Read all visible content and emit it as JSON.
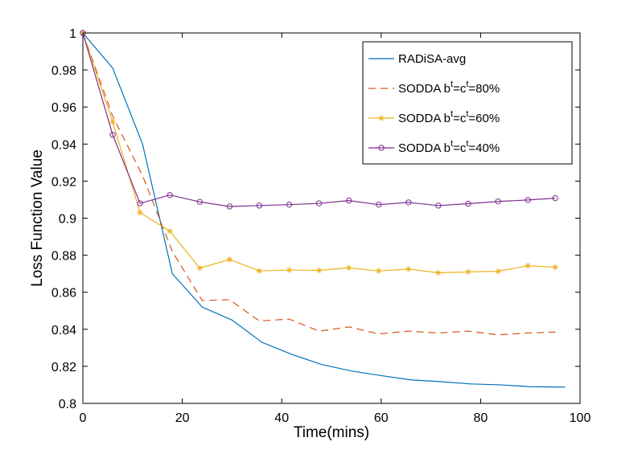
{
  "chart_data": {
    "type": "line",
    "title": "",
    "xlabel": "Time(mins)",
    "ylabel": "Loss Function Value",
    "xlim": [
      0,
      100
    ],
    "ylim": [
      0.8,
      1.0
    ],
    "xticks": [
      0,
      20,
      40,
      60,
      80,
      100
    ],
    "yticks": [
      0.8,
      0.82,
      0.84,
      0.86,
      0.88,
      0.9,
      0.92,
      0.94,
      0.96,
      0.98,
      1.0
    ],
    "xtick_labels": [
      "0",
      "20",
      "40",
      "60",
      "80",
      "100"
    ],
    "ytick_labels": [
      "0.8",
      "0.82",
      "0.84",
      "0.86",
      "0.88",
      "0.9",
      "0.92",
      "0.94",
      "0.96",
      "0.98",
      "1"
    ],
    "grid": false,
    "legend_position": "top-right",
    "series": [
      {
        "name": "RADiSA-avg",
        "legend": {
          "prefix": "RADiSA-avg",
          "b_sup": "",
          "c_sup": "",
          "suffix": ""
        },
        "color": "#0072bd",
        "style": "solid",
        "marker": "none",
        "x": [
          0,
          6,
          12,
          18,
          24,
          30,
          36,
          42,
          48,
          54,
          60,
          66,
          72,
          78,
          84,
          90,
          97
        ],
        "y": [
          1.0,
          0.981,
          0.94,
          0.87,
          0.852,
          0.845,
          0.833,
          0.8265,
          0.821,
          0.8175,
          0.815,
          0.8127,
          0.8117,
          0.8105,
          0.81,
          0.809,
          0.8088
        ]
      },
      {
        "name": "SODDA b^t=c^t=80%",
        "legend": {
          "prefix": "SODDA b",
          "b_sup": "t",
          "c_sup": "t",
          "suffix": "=80%"
        },
        "color": "#d95319",
        "style": "dashed",
        "marker": "none",
        "x": [
          0,
          6,
          12,
          18,
          24,
          29.5,
          35.5,
          41.5,
          47.5,
          53.5,
          59.5,
          65.5,
          71.5,
          77.5,
          83.5,
          89.5,
          95
        ],
        "y": [
          1.0,
          0.955,
          0.923,
          0.882,
          0.8555,
          0.856,
          0.8445,
          0.8455,
          0.839,
          0.8413,
          0.8375,
          0.839,
          0.838,
          0.839,
          0.837,
          0.838,
          0.8385
        ]
      },
      {
        "name": "SODDA b^t=c^t=60%",
        "legend": {
          "prefix": "SODDA b",
          "b_sup": "t",
          "c_sup": "t",
          "suffix": "=60%"
        },
        "color": "#edb120",
        "style": "solid",
        "marker": "star",
        "x": [
          0,
          6,
          11.5,
          17.5,
          23.5,
          29.5,
          35.5,
          41.5,
          47.5,
          53.5,
          59.5,
          65.5,
          71.5,
          77.5,
          83.5,
          89.5,
          95
        ],
        "y": [
          1.0,
          0.952,
          0.903,
          0.893,
          0.873,
          0.8777,
          0.8715,
          0.872,
          0.8718,
          0.8732,
          0.8715,
          0.8725,
          0.8705,
          0.871,
          0.8713,
          0.8743,
          0.8735
        ]
      },
      {
        "name": "SODDA b^t=c^t=40%",
        "legend": {
          "prefix": "SODDA b",
          "b_sup": "t",
          "c_sup": "t",
          "suffix": "=40%"
        },
        "color": "#7e2f8e",
        "style": "solid",
        "marker": "circle",
        "x": [
          0,
          6,
          11.5,
          17.5,
          23.5,
          29.5,
          35.5,
          41.5,
          47.5,
          53.5,
          59.5,
          65.5,
          71.5,
          77.5,
          83.5,
          89.5,
          95
        ],
        "y": [
          1.0,
          0.945,
          0.908,
          0.9125,
          0.9088,
          0.9063,
          0.9068,
          0.9073,
          0.908,
          0.9095,
          0.9073,
          0.9085,
          0.9068,
          0.9078,
          0.909,
          0.9098,
          0.9108
        ]
      }
    ]
  }
}
